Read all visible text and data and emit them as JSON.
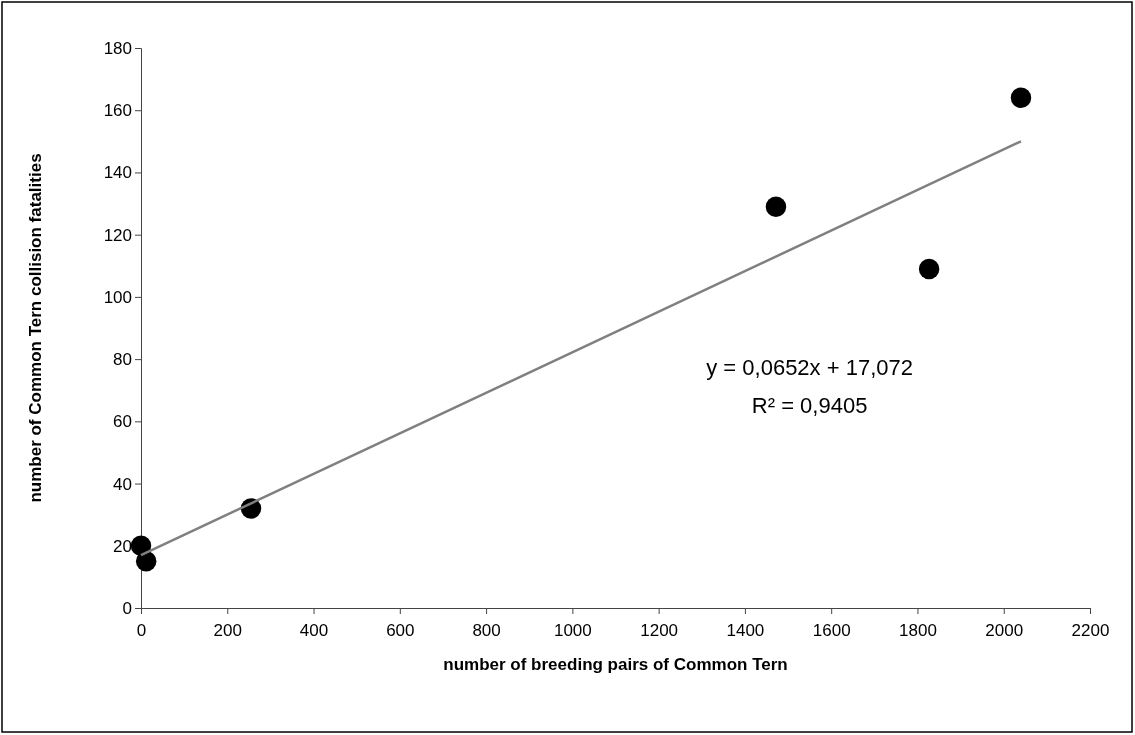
{
  "chart_data": {
    "type": "scatter",
    "xlabel": "number of breeding pairs of Common Tern",
    "ylabel": "number of Common Tern collision fatalities",
    "series": [
      {
        "type": "scatter",
        "color": "#000000",
        "marker": "circle",
        "x": [
          0,
          12,
          255,
          1472,
          1827,
          2040
        ],
        "values": [
          20,
          15,
          32,
          129,
          109,
          164
        ]
      },
      {
        "type": "line",
        "color": "#808080",
        "marker": "none",
        "x": [
          0,
          2040
        ],
        "values": [
          17,
          150
        ]
      }
    ],
    "xlim": [
      0,
      2200
    ],
    "xticks": [
      0,
      200,
      400,
      600,
      800,
      1000,
      1200,
      1400,
      1600,
      1800,
      2000,
      2200
    ],
    "ylim": [
      0,
      180
    ],
    "yticks": [
      0,
      20,
      40,
      60,
      80,
      100,
      120,
      140,
      160,
      180
    ],
    "grid": false,
    "annotations": [
      "y = 0,0652x + 17,072",
      "R² = 0,9405"
    ]
  }
}
